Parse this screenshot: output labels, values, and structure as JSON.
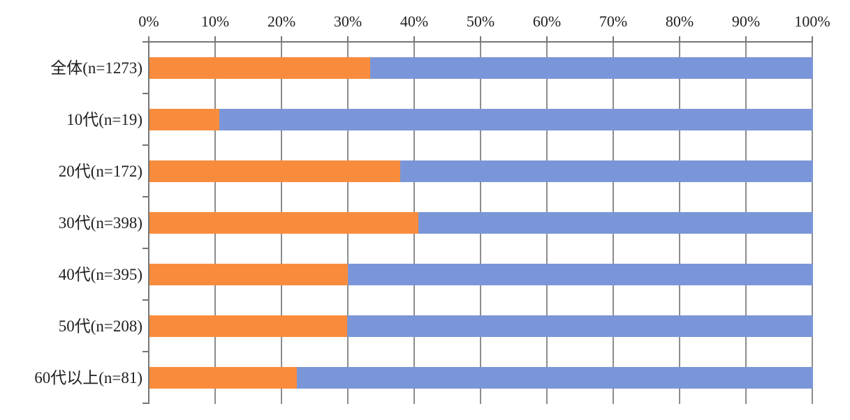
{
  "chart_data": {
    "type": "bar",
    "orientation": "horizontal",
    "stacked": true,
    "title": "",
    "legend": "none",
    "categories": [
      "全体(n=1273)",
      "10代(n=19)",
      "20代(n=172)",
      "30代(n=398)",
      "40代(n=395)",
      "50代(n=208)",
      "60代以上(n=81)"
    ],
    "series": [
      {
        "name": "segment-1-orange",
        "color": "#F98C3C",
        "values": [
          33.3,
          10.5,
          37.8,
          40.5,
          29.9,
          29.8,
          22.2
        ]
      },
      {
        "name": "segment-2-blue",
        "color": "#7B96D8",
        "values": [
          66.7,
          89.5,
          62.2,
          59.5,
          70.1,
          70.2,
          77.8
        ]
      }
    ],
    "x_axis": {
      "position": "top",
      "min": 0,
      "max": 100,
      "tick_interval": 10,
      "unit": "%",
      "tick_labels": [
        "0%",
        "10%",
        "20%",
        "30%",
        "40%",
        "50%",
        "60%",
        "70%",
        "80%",
        "90%",
        "100%"
      ]
    },
    "grid": {
      "vertical": true,
      "horizontal": false
    },
    "colors": {
      "gridline": "#8C8C8C",
      "axis": "#767676",
      "text": "#1F1F1F",
      "background": "#FFFFFF"
    }
  }
}
